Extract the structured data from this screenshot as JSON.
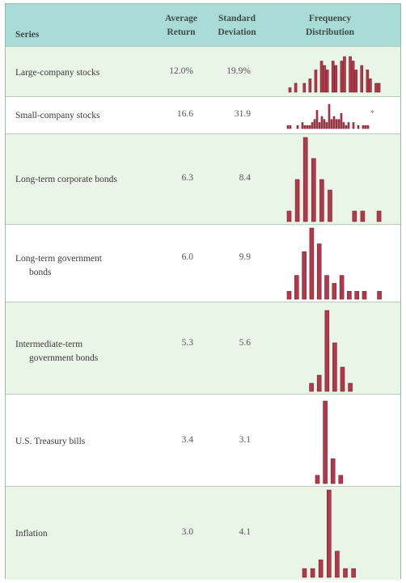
{
  "header": {
    "series": "Series",
    "avg_line1": "Average",
    "avg_line2": "Return",
    "sd_line1": "Standard",
    "sd_line2": "Deviation",
    "freq_line1": "Frequency",
    "freq_line2": "Distribution"
  },
  "colors": {
    "bar": "#b03a4b",
    "bar_stroke": "#7a2030",
    "header_bg": "#a9dcd6",
    "row_alt": "#e9f5e6"
  },
  "footnote_mark": "*",
  "chart_data": {
    "type": "table",
    "columns": [
      "Series",
      "Average Return",
      "Standard Deviation",
      "Frequency Distribution"
    ],
    "rows": [
      {
        "series": [
          "Large-company stocks"
        ],
        "avg": "12.0%",
        "sd": "19.9%",
        "dist": [
          1,
          0,
          2,
          0,
          0,
          2,
          0,
          3,
          0,
          5,
          0,
          7,
          6,
          5,
          0,
          7,
          6,
          0,
          7,
          8,
          0,
          8,
          7,
          5,
          0,
          6,
          0,
          5,
          3,
          0,
          2,
          2
        ]
      },
      {
        "series": [
          "Small-company stocks"
        ],
        "avg": "16.6",
        "sd": "31.9",
        "dist": [
          1,
          1,
          0,
          0,
          1,
          0,
          2,
          1,
          1,
          1,
          2,
          3,
          6,
          2,
          4,
          3,
          2,
          8,
          3,
          4,
          3,
          3,
          5,
          2,
          1,
          2,
          0,
          2,
          0,
          1,
          0,
          1,
          1,
          1
        ]
      },
      {
        "series": [
          "Long-term corporate bonds"
        ],
        "avg": "6.3",
        "sd": "8.4",
        "dist": [
          1,
          4,
          8,
          6,
          4,
          3,
          0,
          0,
          1,
          1,
          0,
          1
        ]
      },
      {
        "series": [
          "Long-term government",
          "bonds"
        ],
        "avg": "6.0",
        "sd": "9.9",
        "dist": [
          1,
          3,
          6,
          9,
          7,
          3,
          2,
          3,
          1,
          1,
          1,
          0,
          1
        ]
      },
      {
        "series": [
          "Intermediate-term",
          "government bonds"
        ],
        "avg": "5.3",
        "sd": "5.6",
        "dist": [
          0,
          1,
          2,
          10,
          6,
          3,
          1,
          0,
          0
        ]
      },
      {
        "series": [
          "U.S. Treasury bills"
        ],
        "avg": "3.4",
        "sd": "3.1",
        "dist": [
          1,
          10,
          3,
          1
        ]
      },
      {
        "series": [
          "Inflation"
        ],
        "avg": "3.0",
        "sd": "4.1",
        "dist": [
          1,
          1,
          2,
          10,
          3,
          1,
          1
        ]
      }
    ]
  }
}
